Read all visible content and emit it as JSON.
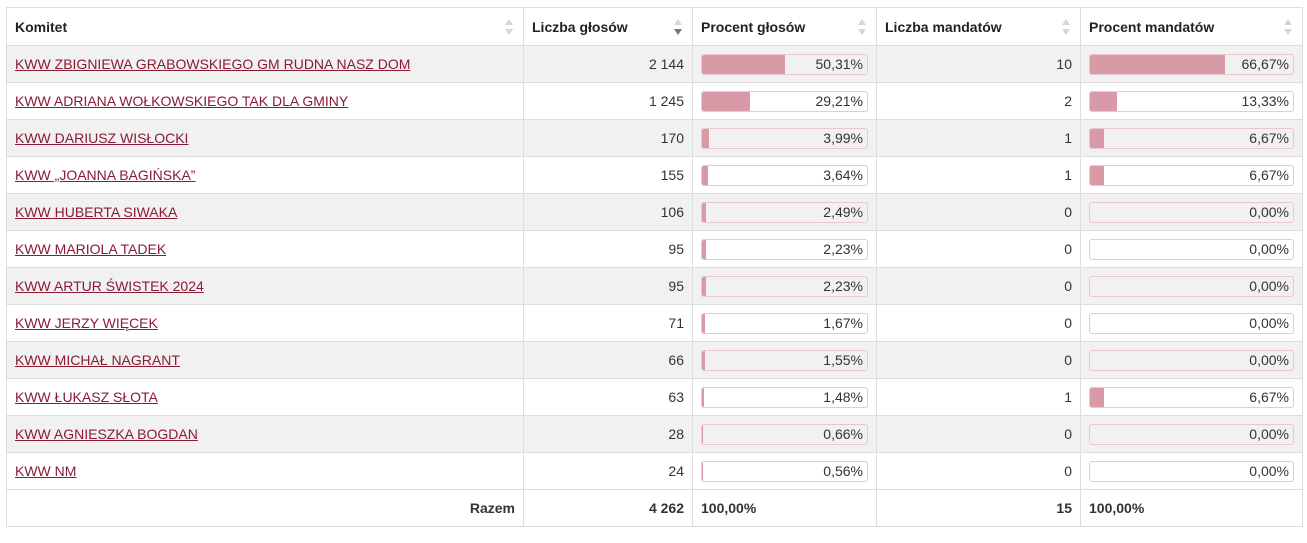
{
  "table": {
    "headers": {
      "committee": "Komitet",
      "votes": "Liczba głosów",
      "votes_pct": "Procent głosów",
      "seats": "Liczba mandatów",
      "seats_pct": "Procent mandatów"
    },
    "sorted_column": "votes",
    "sort_direction": "descending",
    "rows": [
      {
        "name": "KWW ZBIGNIEWA GRABOWSKIEGO GM RUDNA NASZ DOM",
        "votes": "2 144",
        "votes_pct_label": "50,31%",
        "votes_pct": 50.31,
        "seats": "10",
        "seats_pct_label": "66,67%",
        "seats_pct": 66.67
      },
      {
        "name": "KWW ADRIANA WOŁKOWSKIEGO TAK DLA GMINY",
        "votes": "1 245",
        "votes_pct_label": "29,21%",
        "votes_pct": 29.21,
        "seats": "2",
        "seats_pct_label": "13,33%",
        "seats_pct": 13.33
      },
      {
        "name": "KWW DARIUSZ WISŁOCKI",
        "votes": "170",
        "votes_pct_label": "3,99%",
        "votes_pct": 3.99,
        "seats": "1",
        "seats_pct_label": "6,67%",
        "seats_pct": 6.67
      },
      {
        "name": "KWW „JOANNA BAGIŃSKA”",
        "votes": "155",
        "votes_pct_label": "3,64%",
        "votes_pct": 3.64,
        "seats": "1",
        "seats_pct_label": "6,67%",
        "seats_pct": 6.67
      },
      {
        "name": "KWW HUBERTA SIWAKA",
        "votes": "106",
        "votes_pct_label": "2,49%",
        "votes_pct": 2.49,
        "seats": "0",
        "seats_pct_label": "0,00%",
        "seats_pct": 0
      },
      {
        "name": "KWW MARIOLA TADEK",
        "votes": "95",
        "votes_pct_label": "2,23%",
        "votes_pct": 2.23,
        "seats": "0",
        "seats_pct_label": "0,00%",
        "seats_pct": 0
      },
      {
        "name": "KWW ARTUR ŚWISTEK 2024",
        "votes": "95",
        "votes_pct_label": "2,23%",
        "votes_pct": 2.23,
        "seats": "0",
        "seats_pct_label": "0,00%",
        "seats_pct": 0
      },
      {
        "name": "KWW JERZY WIĘCEK",
        "votes": "71",
        "votes_pct_label": "1,67%",
        "votes_pct": 1.67,
        "seats": "0",
        "seats_pct_label": "0,00%",
        "seats_pct": 0
      },
      {
        "name": "KWW MICHAŁ NAGRANT",
        "votes": "66",
        "votes_pct_label": "1,55%",
        "votes_pct": 1.55,
        "seats": "0",
        "seats_pct_label": "0,00%",
        "seats_pct": 0
      },
      {
        "name": "KWW ŁUKASZ SŁOTA",
        "votes": "63",
        "votes_pct_label": "1,48%",
        "votes_pct": 1.48,
        "seats": "1",
        "seats_pct_label": "6,67%",
        "seats_pct": 6.67
      },
      {
        "name": "KWW AGNIESZKA BOGDAN",
        "votes": "28",
        "votes_pct_label": "0,66%",
        "votes_pct": 0.66,
        "seats": "0",
        "seats_pct_label": "0,00%",
        "seats_pct": 0
      },
      {
        "name": "KWW NM",
        "votes": "24",
        "votes_pct_label": "0,56%",
        "votes_pct": 0.56,
        "seats": "0",
        "seats_pct_label": "0,00%",
        "seats_pct": 0
      }
    ],
    "footer": {
      "label": "Razem",
      "votes_total": "4 262",
      "votes_pct_total": "100,00%",
      "seats_total": "15",
      "seats_pct_total": "100,00%"
    }
  },
  "colors": {
    "link": "#8b1a34",
    "bar_fill": "#d99aa7",
    "bar_border": "#e6c9cf",
    "row_stripe": "#f1f1f1"
  }
}
